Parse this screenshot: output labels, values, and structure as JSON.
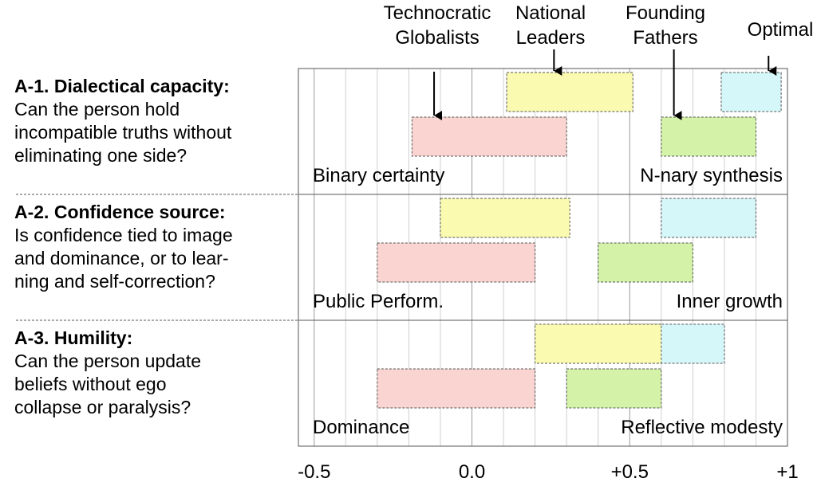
{
  "chart_data": {
    "type": "range-bar",
    "xlim": [
      -0.55,
      1.0
    ],
    "x_ticks": [
      {
        "value": -0.5,
        "label": "-0.5"
      },
      {
        "value": 0.0,
        "label": "0.0"
      },
      {
        "value": 0.5,
        "label": "+0.5"
      },
      {
        "value": 1.0,
        "label": "+1"
      }
    ],
    "grid_step": 0.1,
    "series": [
      {
        "key": "technocratic",
        "label_lines": [
          "Technocratic",
          "Globalists"
        ],
        "color": "#f9d4d0"
      },
      {
        "key": "national",
        "label_lines": [
          "National",
          "Leaders"
        ],
        "color": "#fafab0"
      },
      {
        "key": "founding",
        "label_lines": [
          "Founding",
          "Fathers"
        ],
        "color": "#d4f3a8"
      },
      {
        "key": "optimal",
        "label_lines": [
          "Optimal"
        ],
        "color": "#d6f7f9"
      }
    ],
    "rows": [
      {
        "question": {
          "title": "A-1. Dialectical capacity:",
          "lines": [
            "Can the person hold",
            "incompatible truths without",
            "eliminating one side?"
          ]
        },
        "left_label": "Binary certainty",
        "right_label": "N-nary synthesis",
        "bars": [
          {
            "series": "national",
            "level": "upper",
            "start": 0.11,
            "end": 0.51
          },
          {
            "series": "optimal",
            "level": "upper",
            "start": 0.79,
            "end": 0.98
          },
          {
            "series": "technocratic",
            "level": "lower",
            "start": -0.19,
            "end": 0.3
          },
          {
            "series": "founding",
            "level": "lower",
            "start": 0.6,
            "end": 0.9
          }
        ]
      },
      {
        "question": {
          "title": "A-2. Confidence source:",
          "lines": [
            "Is confidence tied to image",
            "and dominance, or to lear-",
            "ning and self-correction?"
          ]
        },
        "left_label": "Public Perform.",
        "right_label": "Inner growth",
        "bars": [
          {
            "series": "national",
            "level": "upper",
            "start": -0.1,
            "end": 0.31
          },
          {
            "series": "optimal",
            "level": "upper",
            "start": 0.6,
            "end": 0.9
          },
          {
            "series": "technocratic",
            "level": "lower",
            "start": -0.3,
            "end": 0.2
          },
          {
            "series": "founding",
            "level": "lower",
            "start": 0.4,
            "end": 0.7
          }
        ]
      },
      {
        "question": {
          "title": "A-3. Humility:",
          "lines": [
            "Can the person update",
            "beliefs without ego",
            "collapse or paralysis?"
          ]
        },
        "left_label": "Dominance",
        "right_label": "Reflective modesty",
        "bars": [
          {
            "series": "optimal",
            "level": "upper",
            "start": 0.5,
            "end": 0.8
          },
          {
            "series": "national",
            "level": "upper",
            "start": 0.2,
            "end": 0.6
          },
          {
            "series": "technocratic",
            "level": "lower",
            "start": -0.3,
            "end": 0.2
          },
          {
            "series": "founding",
            "level": "lower",
            "start": 0.3,
            "end": 0.6
          }
        ]
      }
    ]
  }
}
